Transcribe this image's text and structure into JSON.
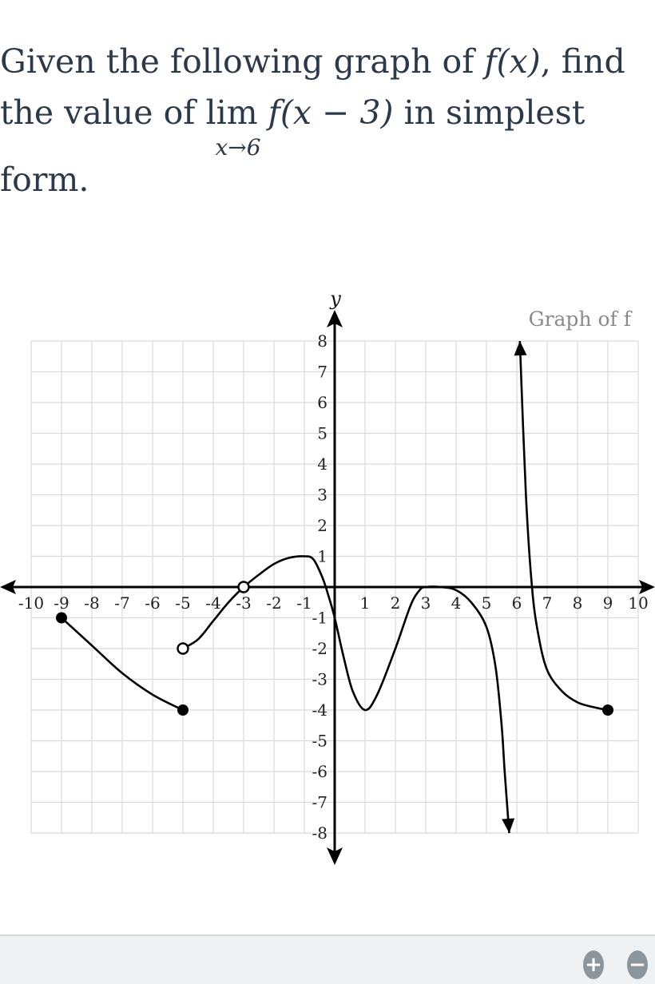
{
  "question": {
    "line1": "Given the following graph of ",
    "f_of_x": "f(x)",
    "line1_end": ", find",
    "line2_start": "the value of ",
    "lim": "lim",
    "lim_sub": "x→6",
    "expr": "f(x − 3)",
    "line2_end": " in simplest",
    "line3": "form."
  },
  "chart_data": {
    "type": "line",
    "title": "Graph of f",
    "xlabel": "",
    "ylabel": "y",
    "xlim": [
      -10,
      10
    ],
    "ylim": [
      -8,
      8
    ],
    "grid": true,
    "x_ticks": [
      "-10",
      "-9",
      "-8",
      "-7",
      "-6",
      "-5",
      "-4",
      "-3",
      "-2",
      "-1",
      "1",
      "2",
      "3",
      "4",
      "5",
      "6",
      "7",
      "8",
      "9",
      "10"
    ],
    "y_ticks": [
      "8",
      "7",
      "6",
      "5",
      "4",
      "3",
      "2",
      "1",
      "-1",
      "-2",
      "-3",
      "-4",
      "-5",
      "-6",
      "-7",
      "-8"
    ],
    "curves": [
      {
        "points": [
          [
            -9,
            -1
          ],
          [
            -8,
            -1.9
          ],
          [
            -7,
            -2.8
          ],
          [
            -6,
            -3.5
          ],
          [
            -5,
            -4
          ]
        ],
        "start": "closed",
        "end": "closed"
      },
      {
        "points": [
          [
            -5,
            -2
          ],
          [
            -4.5,
            -1.7
          ],
          [
            -4,
            -1.1
          ],
          [
            -3.5,
            -0.5
          ],
          [
            -3,
            0
          ],
          [
            -2.5,
            0.4
          ],
          [
            -2,
            0.75
          ],
          [
            -1.5,
            0.95
          ],
          [
            -1,
            1
          ],
          [
            -0.7,
            0.9
          ],
          [
            -0.4,
            0.3
          ],
          [
            -0.2,
            -0.3
          ],
          [
            0,
            -1
          ],
          [
            0.3,
            -2.3
          ],
          [
            0.6,
            -3.4
          ],
          [
            1,
            -4
          ],
          [
            1.4,
            -3.5
          ],
          [
            2,
            -2
          ],
          [
            2.5,
            -0.6
          ],
          [
            2.8,
            -0.1
          ],
          [
            3,
            0
          ],
          [
            3.5,
            0
          ],
          [
            4,
            -0.1
          ],
          [
            4.5,
            -0.5
          ],
          [
            5,
            -1.3
          ],
          [
            5.3,
            -2.6
          ],
          [
            5.5,
            -4.5
          ],
          [
            5.6,
            -6
          ],
          [
            5.75,
            -8
          ]
        ],
        "start": "open",
        "end": "arrow"
      },
      {
        "points": [
          [
            6.1,
            8
          ],
          [
            6.3,
            3
          ],
          [
            6.5,
            0
          ],
          [
            6.7,
            -1.5
          ],
          [
            7,
            -2.7
          ],
          [
            7.5,
            -3.4
          ],
          [
            8,
            -3.75
          ],
          [
            8.5,
            -3.9
          ],
          [
            9,
            -4
          ]
        ],
        "start": "arrow",
        "end": "closed"
      }
    ],
    "open_points": [
      [
        -5,
        -2
      ],
      [
        -3,
        0
      ]
    ],
    "closed_points": [
      [
        -9,
        -1
      ],
      [
        -5,
        -4
      ],
      [
        9,
        -4
      ]
    ]
  },
  "zoom_controls": {
    "zoom_in": "+",
    "zoom_out": "−"
  }
}
